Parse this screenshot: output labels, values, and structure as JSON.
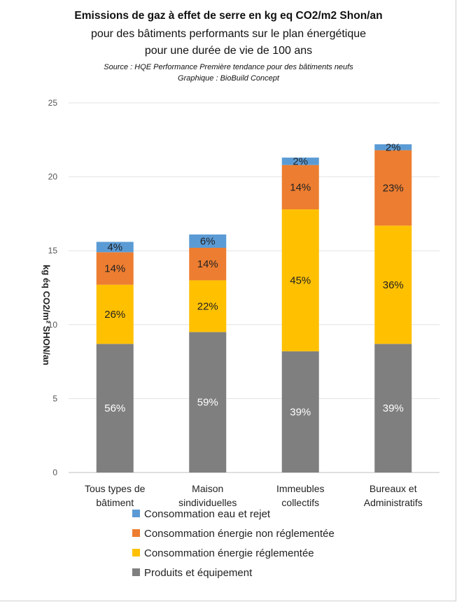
{
  "chart_data": {
    "type": "bar",
    "stacked": true,
    "title": "Emissions de gaz à effet de serre en kg eq CO2/m2 Shon/an",
    "subtitle": [
      "pour des bâtiments performants sur le plan énergétique",
      "pour une durée de vie de 100 ans"
    ],
    "source": "Source : HQE Performance Première tendance pour des bâtiments neufs",
    "credit": "Graphique : BioBuild Concept",
    "ylabel": "kg éq CO2/m² SHON/an",
    "ylim": [
      0,
      25
    ],
    "yticks": [
      "0",
      "5",
      "10",
      "15",
      "20",
      "25"
    ],
    "grid": true,
    "legend_position": "bottom",
    "categories": [
      [
        "Tous types de",
        "bâtiment"
      ],
      [
        "Maison",
        "sindividuelles"
      ],
      [
        "Immeubles",
        "collectifs"
      ],
      [
        "Bureaux et",
        "Administratifs"
      ]
    ],
    "series": [
      {
        "name": "Produits et équipement",
        "color": "#7f7f7f",
        "label_color": "#ffffff",
        "values": [
          8.7,
          9.5,
          8.2,
          8.7
        ],
        "labels": [
          "56%",
          "59%",
          "39%",
          "39%"
        ]
      },
      {
        "name": "Consommation énergie réglementée",
        "color": "#ffc000",
        "label_color": "#222222",
        "values": [
          4.0,
          3.5,
          9.6,
          8.0
        ],
        "labels": [
          "26%",
          "22%",
          "45%",
          "36%"
        ]
      },
      {
        "name": "Consommation énergie non réglementée",
        "color": "#ed7d31",
        "label_color": "#222222",
        "values": [
          2.2,
          2.2,
          3.0,
          5.1
        ],
        "labels": [
          "14%",
          "14%",
          "14%",
          "23%"
        ]
      },
      {
        "name": "Consommation eau et rejet",
        "color": "#5b9bd5",
        "label_color": "#222222",
        "values": [
          0.7,
          0.9,
          0.5,
          0.4
        ],
        "labels": [
          "4%",
          "6%",
          "2%",
          "2%"
        ]
      }
    ],
    "legend_order": [
      "Consommation eau et rejet",
      "Consommation énergie non réglementée",
      "Consommation énergie réglementée",
      "Produits et équipement"
    ]
  }
}
